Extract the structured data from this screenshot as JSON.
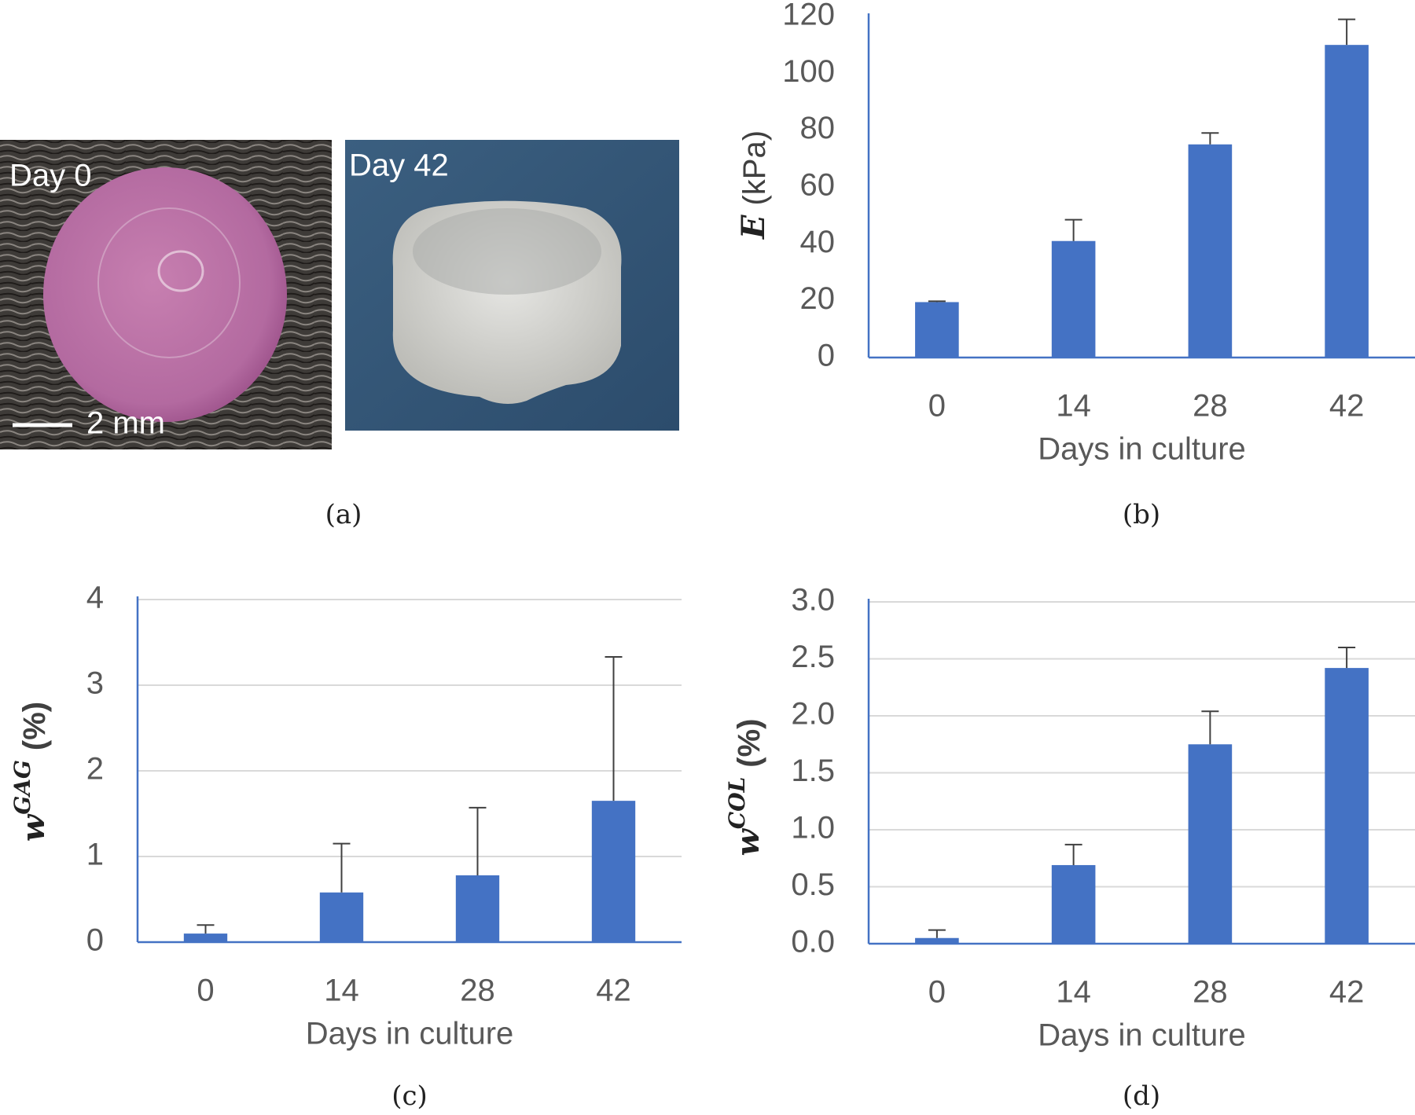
{
  "panel_a": {
    "labels": [
      "Day 0",
      "Day 42"
    ],
    "scale_bar": "2 mm",
    "caption": "(a)"
  },
  "chart_data": [
    {
      "type": "bar",
      "caption": "(b)",
      "categories": [
        "0",
        "14",
        "28",
        "42"
      ],
      "values": [
        19.5,
        41,
        75,
        110
      ],
      "errors": [
        0.3,
        7.5,
        4,
        9
      ],
      "color": "#4472c4",
      "xlabel": "Days in culture",
      "ylabel_symbol": "E",
      "ylabel_unit": "(kPa)",
      "ylim": [
        0,
        120
      ],
      "yticks": [
        0,
        20,
        40,
        60,
        80,
        100,
        120
      ],
      "grid": false
    },
    {
      "type": "bar",
      "caption": "(c)",
      "categories": [
        "0",
        "14",
        "28",
        "42"
      ],
      "values": [
        0.1,
        0.58,
        0.78,
        1.65
      ],
      "errors": [
        0.1,
        0.57,
        0.79,
        1.68
      ],
      "color": "#4472c4",
      "xlabel": "Days in culture",
      "ylabel_symbol": "w",
      "ylabel_superscript": "GAG",
      "ylabel_unit": "(%)",
      "ylim": [
        0,
        4
      ],
      "yticks": [
        0,
        1,
        2,
        3,
        4
      ],
      "grid": true
    },
    {
      "type": "bar",
      "caption": "(d)",
      "categories": [
        "0",
        "14",
        "28",
        "42"
      ],
      "values": [
        0.05,
        0.69,
        1.75,
        2.42
      ],
      "errors": [
        0.07,
        0.18,
        0.29,
        0.18
      ],
      "color": "#4472c4",
      "xlabel": "Days in culture",
      "ylabel_symbol": "w",
      "ylabel_superscript": "COL",
      "ylabel_unit": "(%)",
      "ylim": [
        0,
        3
      ],
      "yticks": [
        {
          "value": 0,
          "label": "0.0"
        },
        {
          "value": 0.5,
          "label": "0.5"
        },
        {
          "value": 1,
          "label": "1.0"
        },
        {
          "value": 1.5,
          "label": "1.5"
        },
        {
          "value": 2,
          "label": "2.0"
        },
        {
          "value": 2.5,
          "label": "2.5"
        },
        {
          "value": 3,
          "label": "3.0"
        }
      ],
      "grid": true
    }
  ]
}
